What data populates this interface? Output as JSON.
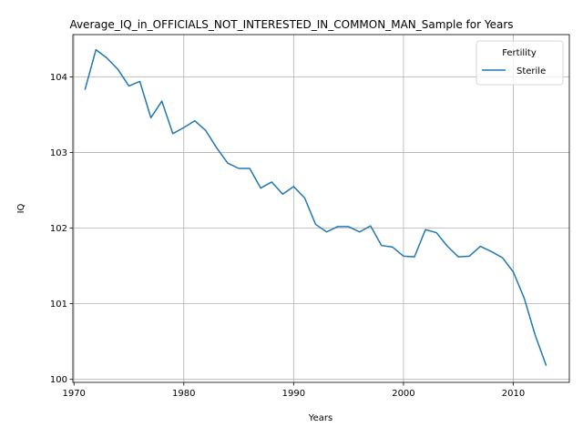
{
  "chart_data": {
    "type": "line",
    "title": "Average_IQ_in_OFFICIALS_NOT_INTERESTED_IN_COMMON_MAN_Sample for Years",
    "xlabel": "Years",
    "ylabel": "IQ",
    "xlim": [
      1969.9,
      2015.1
    ],
    "ylim": [
      99.96,
      104.56
    ],
    "xticks": [
      1970,
      1980,
      1990,
      2000,
      2010
    ],
    "yticks": [
      100,
      101,
      102,
      103,
      104
    ],
    "grid": true,
    "legend": {
      "title": "Fertility",
      "placement": "top-right"
    },
    "series": [
      {
        "name": "Sterile",
        "color": "#1f77b4",
        "x": [
          1971,
          1972,
          1973,
          1974,
          1975,
          1976,
          1977,
          1978,
          1979,
          1980,
          1981,
          1982,
          1983,
          1984,
          1985,
          1986,
          1987,
          1988,
          1989,
          1990,
          1991,
          1992,
          1993,
          1994,
          1995,
          1996,
          1997,
          1998,
          1999,
          2000,
          2001,
          2002,
          2003,
          2004,
          2005,
          2006,
          2007,
          2008,
          2009,
          2010,
          2011,
          2012,
          2013
        ],
        "y": [
          103.83,
          104.36,
          104.25,
          104.1,
          103.88,
          103.94,
          103.46,
          103.68,
          103.25,
          103.33,
          103.42,
          103.29,
          103.06,
          102.86,
          102.79,
          102.79,
          102.53,
          102.61,
          102.45,
          102.55,
          102.4,
          102.05,
          101.95,
          102.02,
          102.02,
          101.95,
          102.03,
          101.77,
          101.75,
          101.63,
          101.62,
          101.98,
          101.94,
          101.76,
          101.62,
          101.63,
          101.76,
          101.69,
          101.61,
          101.42,
          101.07,
          100.58,
          100.18
        ]
      }
    ]
  }
}
